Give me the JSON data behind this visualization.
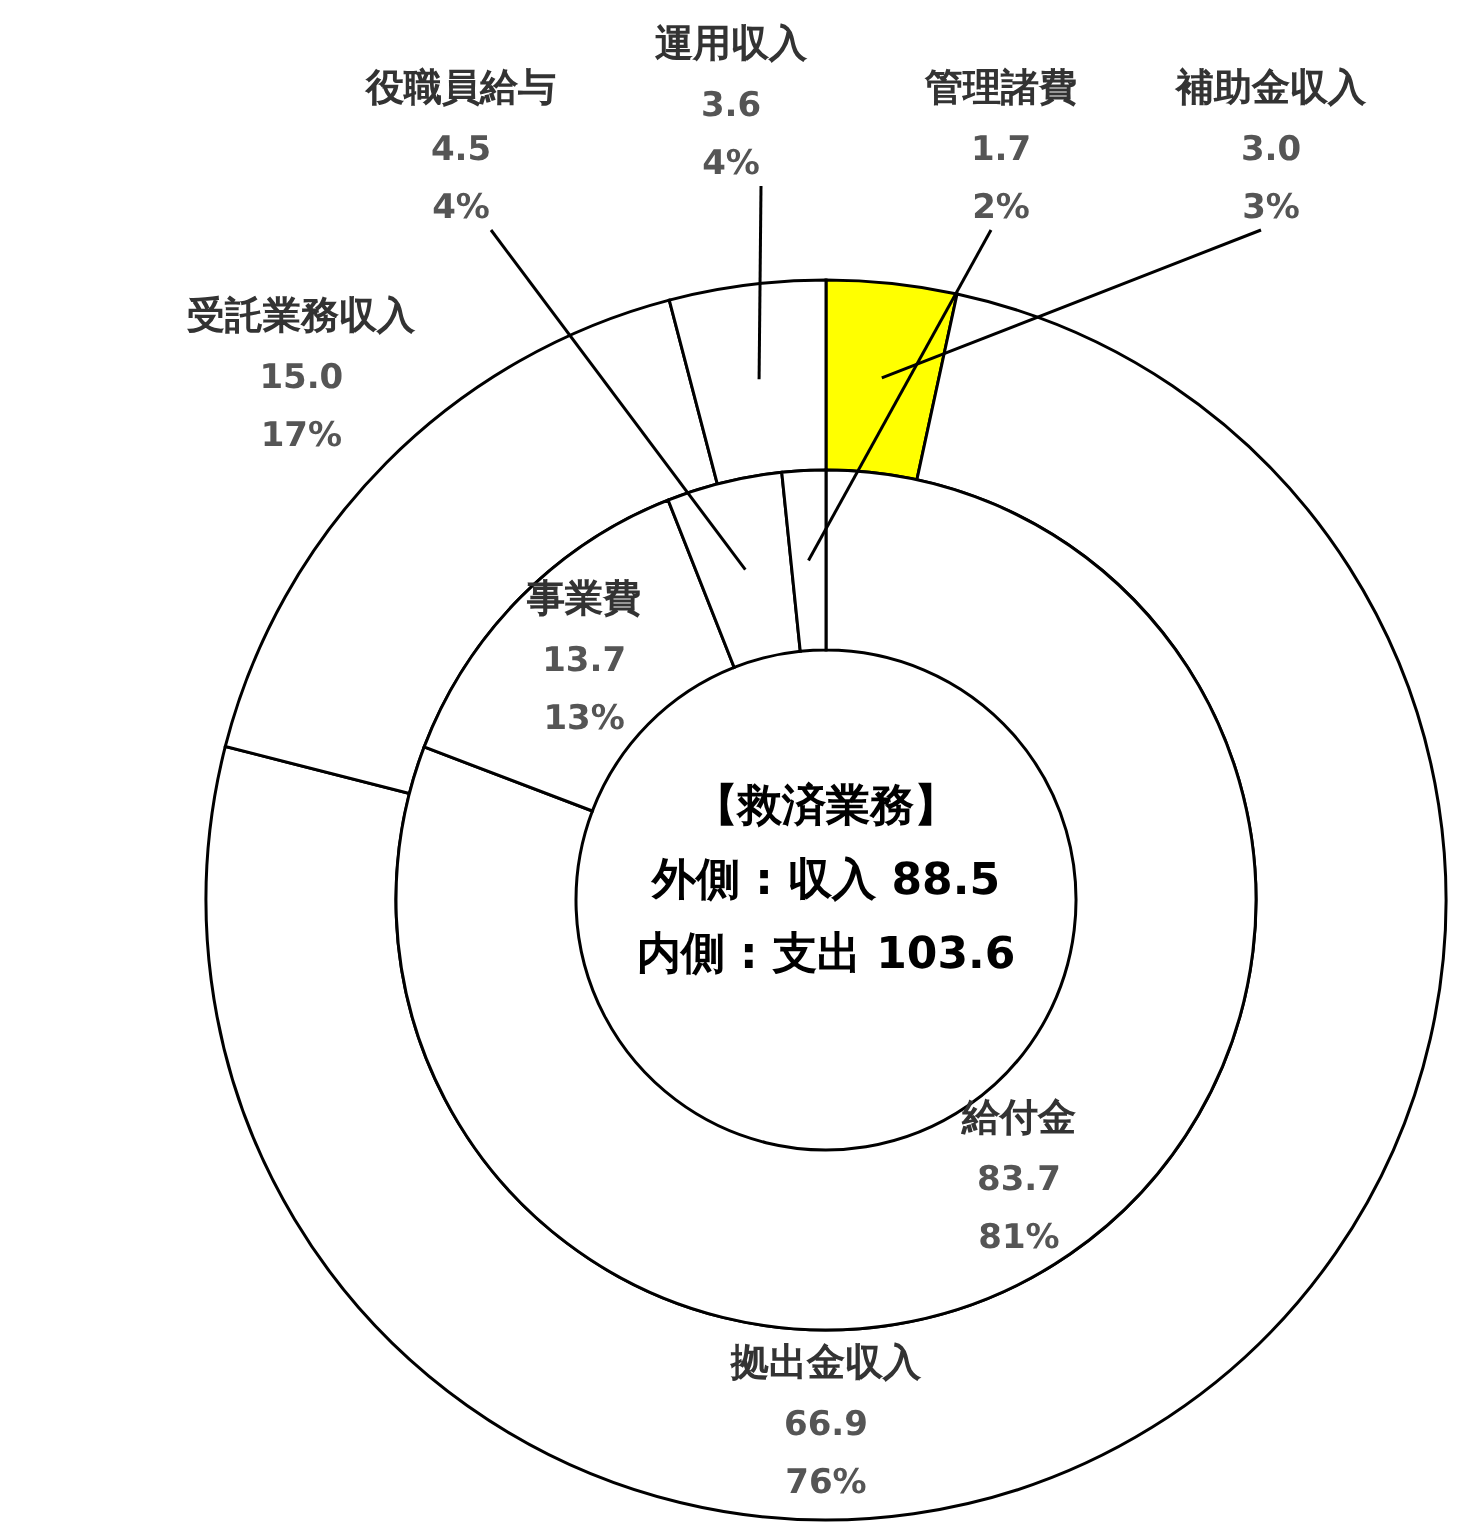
{
  "chart_data": [
    {
      "type": "donut",
      "title": "【救済業務】",
      "annotations": [
        "外側 : 収入 88.5"
      ],
      "categories": [
        "補助金収入",
        "拠出金収入",
        "受託業務収入",
        "運用収入"
      ],
      "values": [
        3.0,
        66.9,
        15.0,
        3.6
      ],
      "value_labels": [
        "3.0\n3%",
        "66.9\n76%",
        "15.0\n17%",
        "3.6\n4%"
      ],
      "colors": [
        "#ffff00",
        "#ffffff",
        "#ffffff",
        "#ffffff"
      ]
    },
    {
      "type": "donut",
      "annotations": [
        "内側 : 支出 103.6"
      ],
      "categories": [
        "給付金",
        "事業費",
        "役職員給与",
        "管理諸費"
      ],
      "values": [
        83.7,
        13.7,
        4.5,
        1.7
      ],
      "value_labels": [
        "83.7\n81%",
        "13.7\n13%",
        "4.5\n4%",
        "1.7\n2%"
      ],
      "colors": [
        "#ffffff",
        "#ffffff",
        "#ffffff",
        "#ffffff"
      ]
    }
  ]
}
